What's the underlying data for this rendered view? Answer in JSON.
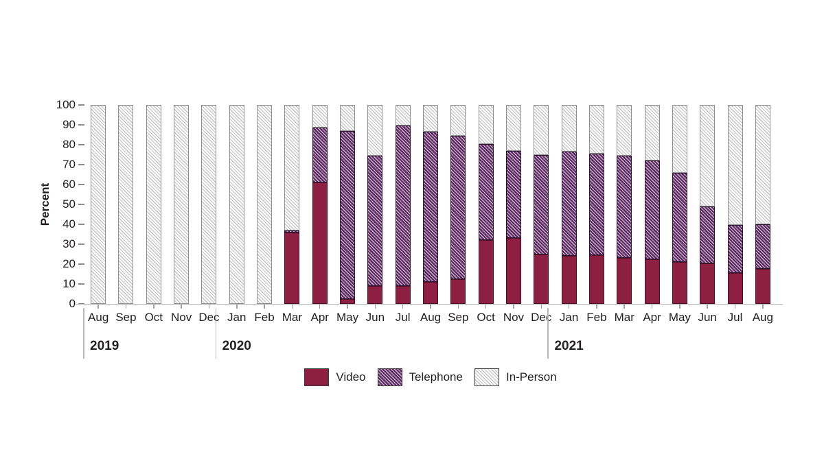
{
  "chart_data": {
    "type": "stacked-bar",
    "title": "",
    "ylabel": "Percent",
    "ylim": [
      0,
      100
    ],
    "ytick_step": 10,
    "grid": false,
    "legend_position": "bottom-center",
    "unit": "percent",
    "year_groups": [
      {
        "year": "2019",
        "months": [
          "Aug",
          "Sep",
          "Oct",
          "Nov",
          "Dec"
        ]
      },
      {
        "year": "2020",
        "months": [
          "Jan",
          "Feb",
          "Mar",
          "Apr",
          "May",
          "Jun",
          "Jul",
          "Aug",
          "Sep",
          "Oct",
          "Nov",
          "Dec"
        ]
      },
      {
        "year": "2021",
        "months": [
          "Jan",
          "Feb",
          "Mar",
          "Apr",
          "May",
          "Jun",
          "Jul",
          "Aug"
        ]
      }
    ],
    "series": [
      {
        "name": "Video",
        "style": "solid",
        "color": "#8d1f43",
        "border_color": "#4f0e26",
        "values": [
          0,
          0,
          0,
          0,
          0,
          0,
          0,
          36,
          61,
          2.5,
          9,
          9,
          11,
          12.5,
          32,
          33,
          25,
          24,
          24.5,
          23,
          22.5,
          21,
          20.5,
          15.5,
          17.5
        ]
      },
      {
        "name": "Telephone",
        "style": "hatched",
        "color": "#5b2a5e",
        "hatch_color": "#cbb4d0",
        "border_color": "#2c1430",
        "values": [
          0,
          0,
          0,
          0,
          0,
          0,
          0,
          1,
          27.5,
          84.5,
          65.5,
          80.5,
          75.5,
          72,
          48.5,
          44,
          50,
          52.5,
          51,
          51.5,
          49.5,
          45,
          28.5,
          24,
          22.5
        ]
      },
      {
        "name": "In-Person",
        "style": "hatched",
        "color": "#fdfdfd",
        "hatch_color": "#c3c3c3",
        "border_color": "#8f8f8f",
        "values": [
          100,
          100,
          100,
          100,
          100,
          100,
          100,
          63,
          11.5,
          13,
          25.5,
          10.5,
          13.5,
          15.5,
          19.5,
          23,
          25,
          23.5,
          24.5,
          25.5,
          28,
          34,
          51,
          60.5,
          60
        ]
      }
    ]
  }
}
